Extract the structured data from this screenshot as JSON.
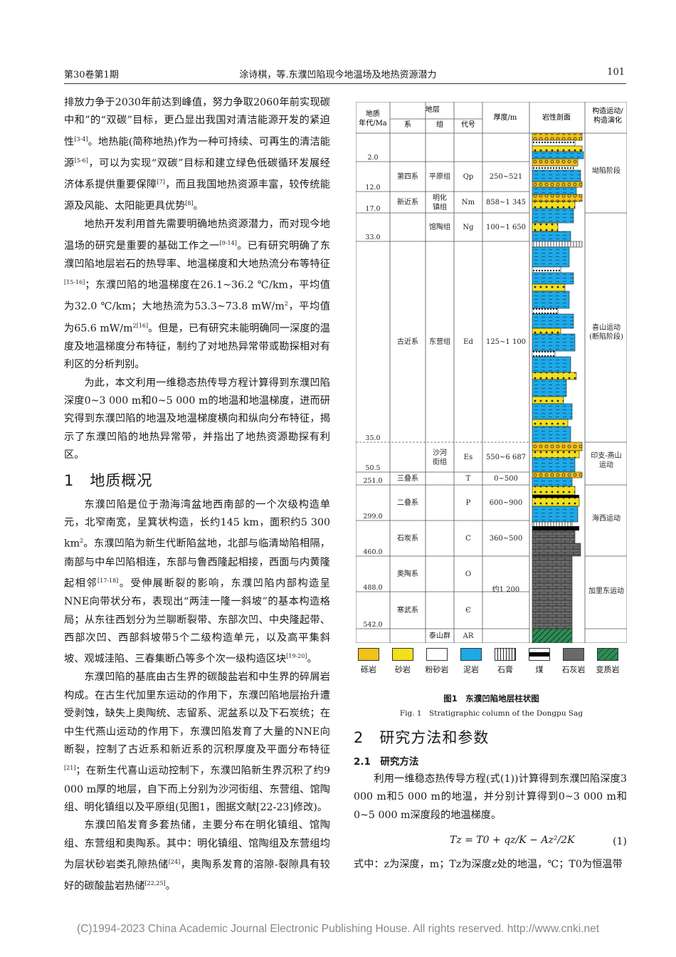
{
  "header": {
    "left": "第30卷第1期",
    "center": "涂诗棋，等.东濮凹陷现今地温场及地热资源潜力",
    "right": "101"
  },
  "left_col": {
    "p1": [
      "排放力争于2030年前达到峰值，努力争取2060年前实现碳中和”的“双碳”目标，更凸显出我国对清洁能源开发的紧迫性",
      "[3-4]",
      "。地热能(简称地热)作为一种可持续、可再生的清洁能源",
      "[5-6]",
      "，可以为实现“双碳”目标和建立绿色低碳循环发展经济体系提供重要保障",
      "[7]",
      "，而且我国地热资源丰富，较传统能源及风能、太阳能更具优势",
      "[8]",
      "。"
    ],
    "p2": [
      "地热开发利用首先需要明确地热资源潜力，而对现今地温场的研究是重要的基础工作之一",
      "[9-14]",
      "。已有研究明确了东濮凹陷地层岩石的热导率、地温梯度和大地热流分布等特征",
      "[15-16]",
      "；东濮凹陷的地温梯度在26.1~36.2 ℃/km，平均值为32.0 ℃/km；大地热流为53.3~73.8 mW/m",
      "2",
      "，平均值为65.6 mW/m",
      "2[16]",
      "。但是，已有研究未能明确同一深度的温度及地温梯度分布特征，制约了对地热异常带或勘探相对有利区的分析判别。"
    ],
    "p3": "为此，本文利用一维稳态热传导方程计算得到东濮凹陷深度0~3 000 m和0~5 000 m的地温和地温梯度，进而研究得到东濮凹陷的地温及地温梯度横向和纵向分布特征，揭示了东濮凹陷的地热异常带，并指出了地热资源勘探有利区。",
    "sec1": "1　地质概况",
    "p4": [
      "东濮凹陷是位于渤海湾盆地西南部的一个次级构造单元，北窄南宽，呈箕状构造，长约145 km，面积约5 300 km",
      "2",
      "。东濮凹陷为新生代断陷盆地，北部与临清坳陷相隔，南部与中牟凹陷相连，东部与鲁西隆起相接，西面与内黄隆起相邻",
      "[17-18]",
      "。受伸展断裂的影响，东濮凹陷内部构造呈NNE向带状分布，表现出“两洼一隆一斜坡”的基本构造格局；从东往西划分为兰聊断裂带、东部次凹、中央隆起带、西部次凹、西部斜坡带5个二级构造单元，以及高平集斜坡、观城洼陷、三春集断凸等多个次一级构造区块",
      "[19-20]",
      "。"
    ],
    "p5": [
      "东濮凹陷的基底由古生界的碳酸盐岩和中生界的碎屑岩构成。在古生代加里东运动的作用下，东濮凹陷地层抬升遭受剥蚀，缺失上奥陶统、志留系、泥盆系以及下石炭统；在中生代燕山运动的作用下，东濮凹陷发育了大量的NNE向断裂，控制了古近系和新近系的沉积厚度及平面分布特征",
      "[21]",
      "；在新生代喜山运动控制下，东濮凹陷新生界沉积了约9 000 m厚的地层，自下而上分别为沙河街组、东营组、馆陶组、明化镇组以及平原组(见图1，图据文献[22-23]修改)。"
    ],
    "p6": [
      "东濮凹陷发育多套热储，主要分布在明化镇组、馆陶组、东营组和奥陶系。其中：明化镇组、馆陶组及东营组均为层状砂岩类孔隙热储",
      "[24]",
      "，奥陶系发育的溶隙-裂隙具有较好的碳酸盐岩热储",
      "[22,25]",
      "。"
    ]
  },
  "figure": {
    "headers": {
      "age": "地质\n年代/Ma",
      "strata": "地层",
      "system": "系",
      "formation": "组",
      "code": "代号",
      "thickness": "厚度/m",
      "lith": "岩性剖面",
      "tect": "构造运动/\n构造演化"
    },
    "ages": [
      "2.0",
      "12.0",
      "17.0",
      "33.0",
      "35.0",
      "50.5",
      "251.0",
      "299.0",
      "460.0",
      "488.0",
      "542.0"
    ],
    "rows": [
      {
        "system": "第四系",
        "formation": "平原组",
        "code": "Qp",
        "thickness": "250~521"
      },
      {
        "system": "新近系",
        "formation": "明化镇组",
        "code": "Nm",
        "thickness": "858~1 345"
      },
      {
        "system": "",
        "formation": "馆陶组",
        "code": "Ng",
        "thickness": "100~1 650"
      },
      {
        "system": "古近系",
        "formation": "东营组",
        "code": "Ed",
        "thickness": "125~1 100"
      },
      {
        "system": "",
        "formation": "沙河街组",
        "code": "Es",
        "thickness": "550~6 687"
      },
      {
        "system": "三叠系",
        "formation": "",
        "code": "T",
        "thickness": "0~500"
      },
      {
        "system": "二叠系",
        "formation": "",
        "code": "P",
        "thickness": "600~900"
      },
      {
        "system": "石炭系",
        "formation": "",
        "code": "C",
        "thickness": "360~500"
      },
      {
        "system": "奥陶系",
        "formation": "",
        "code": "O",
        "thickness": "约1 200"
      },
      {
        "system": "寒武系",
        "formation": "",
        "code": "Є",
        "thickness": ""
      },
      {
        "system": "",
        "formation": "泰山群",
        "code": "AR",
        "thickness": ""
      }
    ],
    "tectonics": [
      "坳陷阶段",
      "喜山运动\n(断陷阶段)",
      "印支-燕山\n运动",
      "海西运动",
      "加里东运动"
    ],
    "legend": [
      "砾岩",
      "砂岩",
      "粉砂岩",
      "泥岩",
      "石膏",
      "煤",
      "石灰岩",
      "变质岩"
    ],
    "caption_cn": "图1　东濮凹陷地层柱状图",
    "caption_en": "Fig. 1　Stratigraphic column of the Dongpu Sag"
  },
  "right_col": {
    "sec2": "2　研究方法和参数",
    "sub21": "2.1　研究方法",
    "p1": "利用一维稳态热传导方程(式(1))计算得到东濮凹陷深度3 000 m和5 000 m的地温，并分别计算得到0~3 000 m和0~5 000 m深度段的地温梯度。",
    "eq": "Tz = T0 + qz/K − Az²/2K",
    "eq_num": "(1)",
    "p2": "式中：z为深度，m；Tz为深度z处的地温，℃；T0为恒温带"
  },
  "footer": "(C)1994-2023 China Academic Journal Electronic Publishing House. All rights reserved.    http://www.cnki.net",
  "colors": {
    "gravel": "#f2c21a",
    "sand": "#f2e01c",
    "mud": "#1ea8e6",
    "lime": "#666666",
    "meta": "#2e8b57"
  }
}
